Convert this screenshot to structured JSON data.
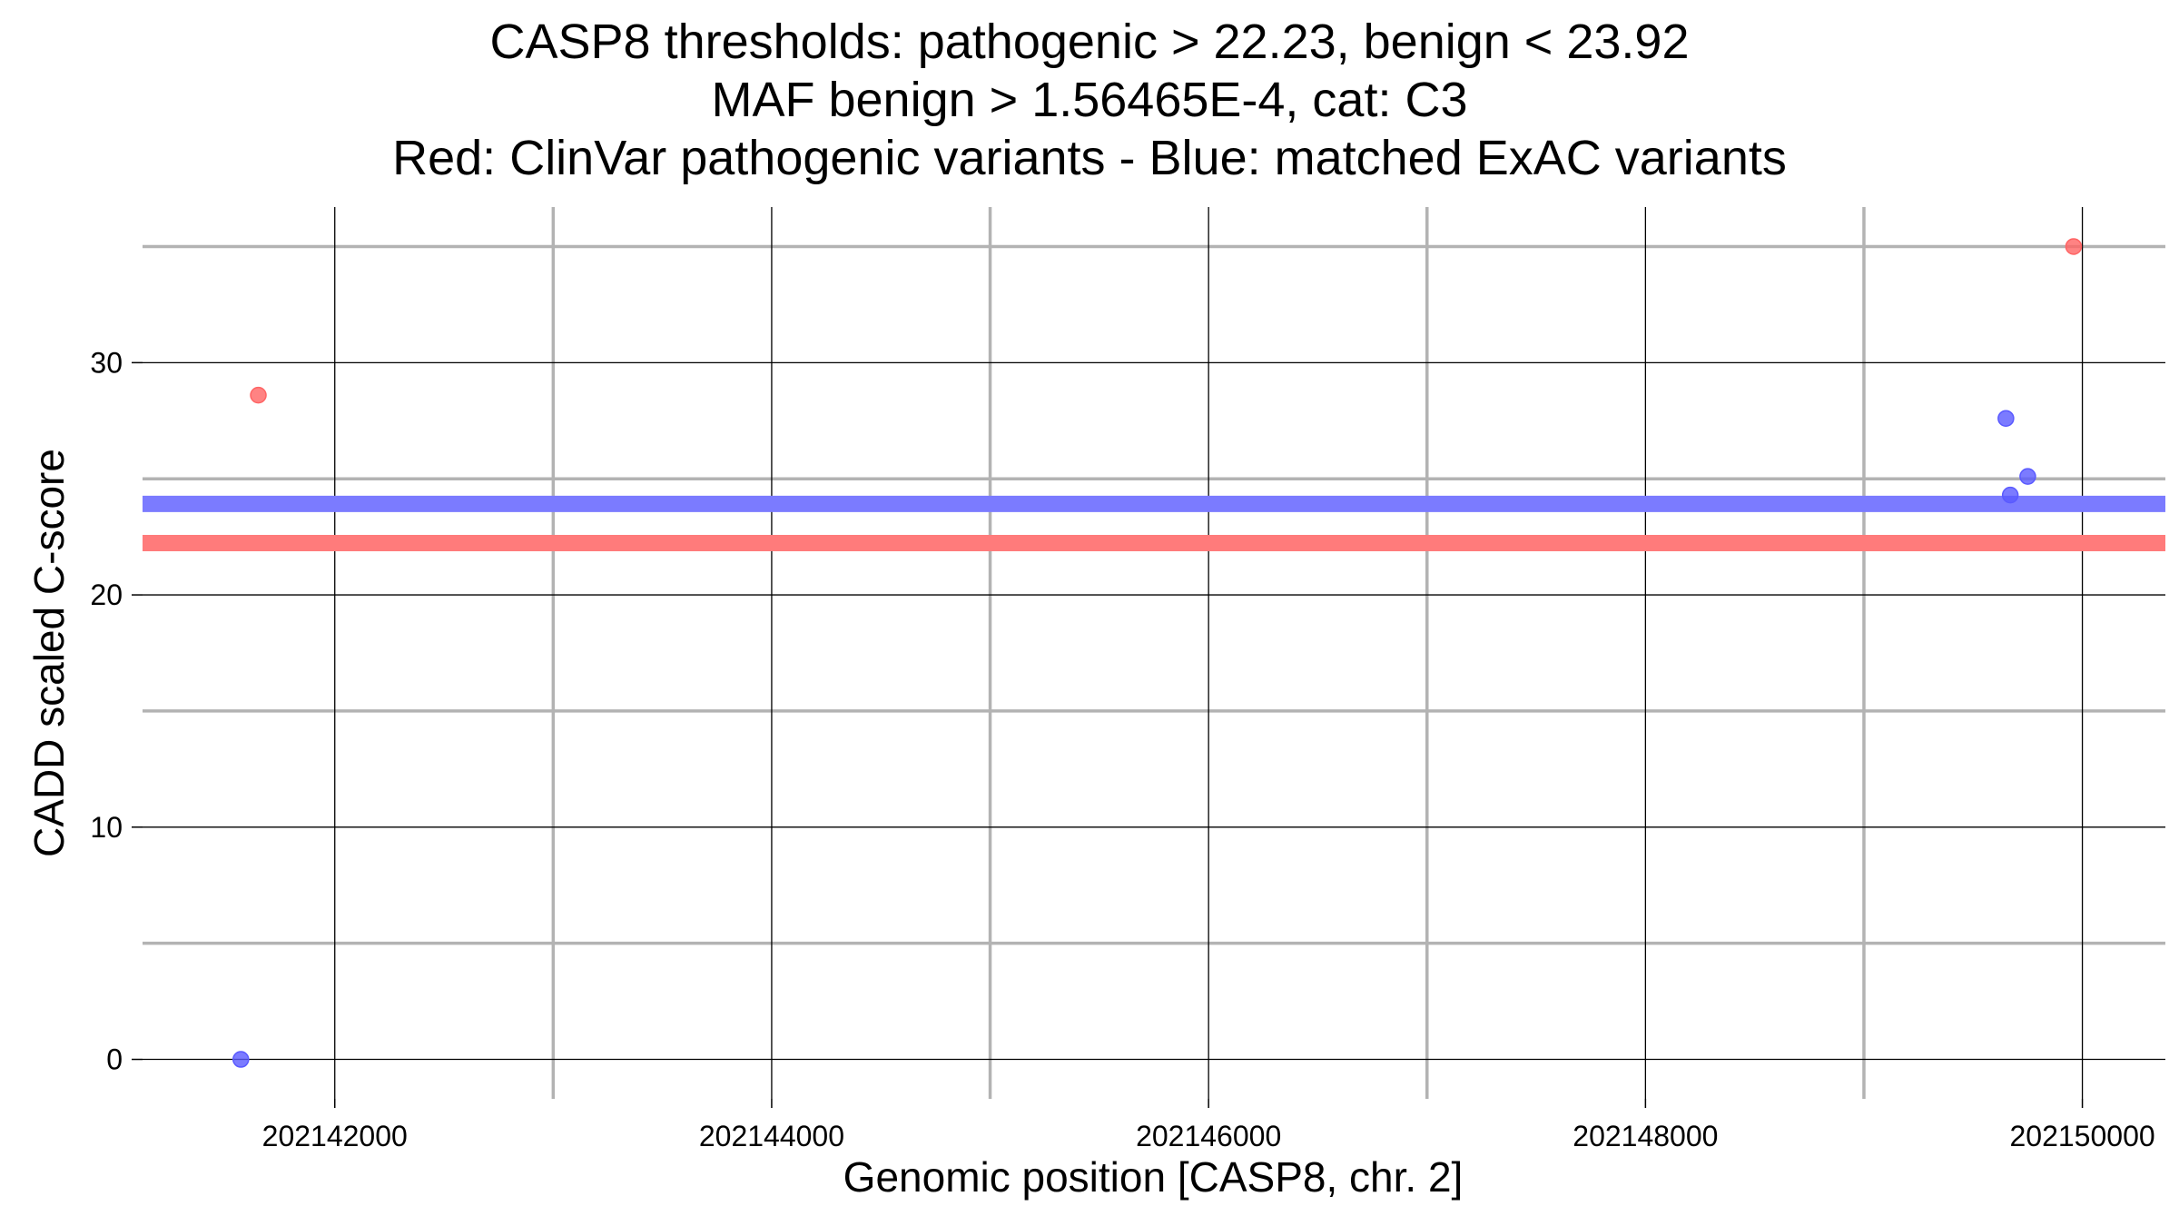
{
  "chart_data": {
    "type": "scatter",
    "title_lines": [
      "CASP8 thresholds: pathogenic > 22.23, benign < 23.92",
      "MAF benign > 1.56465E-4, cat: C3",
      "Red: ClinVar pathogenic variants - Blue: matched ExAC variants"
    ],
    "xlabel": "Genomic position [CASP8, chr. 2]",
    "ylabel": "CADD scaled C-score",
    "xlim": [
      202141120,
      202150380
    ],
    "ylim": [
      -1.7,
      36.7
    ],
    "x_ticks": [
      202142000,
      202144000,
      202146000,
      202148000,
      202150000
    ],
    "x_tick_labels": [
      "202142000",
      "202144000",
      "202146000",
      "202148000",
      "202150000"
    ],
    "x_minor_ticks": [
      202143000,
      202145000,
      202147000,
      202149000
    ],
    "y_ticks": [
      0,
      10,
      20,
      30
    ],
    "y_tick_labels": [
      "0",
      "10",
      "20",
      "30"
    ],
    "y_minor_ticks": [
      5,
      15,
      25,
      35
    ],
    "grid": true,
    "legend": "none",
    "thresholds": [
      {
        "label": "benign",
        "value": 23.92,
        "color": "#7b7bff"
      },
      {
        "label": "pathogenic",
        "value": 22.23,
        "color": "#ff7b7b"
      }
    ],
    "series": [
      {
        "color": "#ff6464",
        "points": [
          {
            "x": 202141650,
            "y": 28.6
          },
          {
            "x": 202149960,
            "y": 35.0
          }
        ]
      },
      {
        "color": "#5a5aff",
        "points": [
          {
            "x": 202141570,
            "y": 0.0
          },
          {
            "x": 202149650,
            "y": 27.6
          },
          {
            "x": 202149670,
            "y": 24.3
          },
          {
            "x": 202149750,
            "y": 25.1
          }
        ]
      }
    ]
  }
}
